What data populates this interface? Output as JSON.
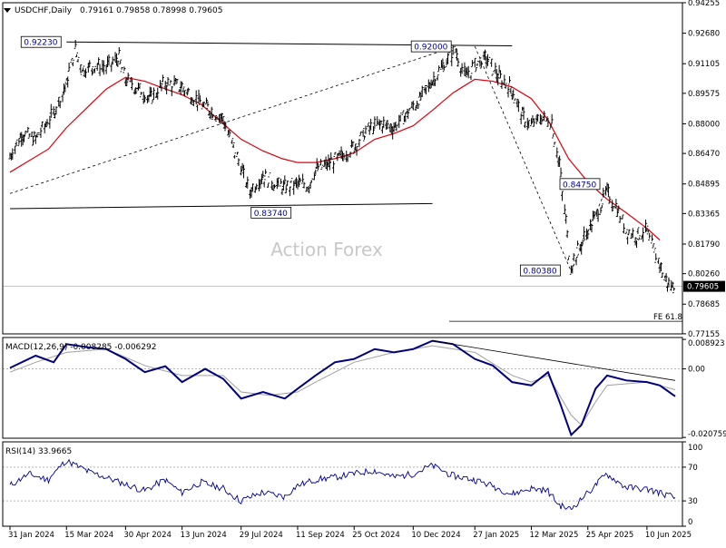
{
  "header": {
    "symbol_label": "USDCHF,Daily",
    "ohlc_label": "0.79161 0.79858 0.78998 0.79605"
  },
  "watermark": "Action Forex",
  "colors": {
    "background": "#ffffff",
    "candles": "#000000",
    "ma": "#e0000a",
    "macd_main": "#00007f",
    "macd_signal": "#a0a0a0",
    "rsi": "#00008b",
    "price_marker_bg": "#000000"
  },
  "chart_data": [
    {
      "type": "ohlc",
      "title": "USDCHF,Daily",
      "ylim": [
        0.7715,
        0.94255
      ],
      "y_ticks": [
        "0.94255",
        "0.92680",
        "0.91105",
        "0.89575",
        "0.88000",
        "0.86470",
        "0.84895",
        "0.83365",
        "0.81790",
        "0.80260",
        "0.78685",
        "0.77155"
      ],
      "current_price": "0.79605",
      "grid": false,
      "series": [
        {
          "name": "MA",
          "points": [
            [
              "2024-01-31",
              0.855
            ],
            [
              "2024-02-15",
              0.861
            ],
            [
              "2024-03-01",
              0.867
            ],
            [
              "2024-03-15",
              0.878
            ],
            [
              "2024-04-01",
              0.889
            ],
            [
              "2024-04-15",
              0.898
            ],
            [
              "2024-04-30",
              0.904
            ],
            [
              "2024-05-15",
              0.902
            ],
            [
              "2024-05-31",
              0.898
            ],
            [
              "2024-06-13",
              0.895
            ],
            [
              "2024-06-28",
              0.89
            ],
            [
              "2024-07-15",
              0.88
            ],
            [
              "2024-07-29",
              0.872
            ],
            [
              "2024-08-15",
              0.866
            ],
            [
              "2024-08-30",
              0.862
            ],
            [
              "2024-09-11",
              0.86
            ],
            [
              "2024-09-25",
              0.86
            ],
            [
              "2024-10-10",
              0.862
            ],
            [
              "2024-10-25",
              0.865
            ],
            [
              "2024-11-10",
              0.872
            ],
            [
              "2024-11-25",
              0.875
            ],
            [
              "2024-12-10",
              0.879
            ],
            [
              "2024-12-25",
              0.887
            ],
            [
              "2025-01-10",
              0.896
            ],
            [
              "2025-01-27",
              0.903
            ],
            [
              "2025-02-10",
              0.902
            ],
            [
              "2025-02-25",
              0.899
            ],
            [
              "2025-03-12",
              0.893
            ],
            [
              "2025-03-25",
              0.882
            ],
            [
              "2025-04-10",
              0.862
            ],
            [
              "2025-04-25",
              0.85
            ],
            [
              "2025-05-10",
              0.841
            ],
            [
              "2025-05-25",
              0.834
            ],
            [
              "2025-06-10",
              0.826
            ],
            [
              "2025-06-20",
              0.82
            ]
          ]
        }
      ],
      "key_points": [
        [
          "2024-01-31",
          0.863
        ],
        [
          "2024-02-10",
          0.875
        ],
        [
          "2024-02-20",
          0.872
        ],
        [
          "2024-03-05",
          0.885
        ],
        [
          "2024-03-15",
          0.9
        ],
        [
          "2024-03-22",
          0.918
        ],
        [
          "2024-03-28",
          0.908
        ],
        [
          "2024-04-08",
          0.91
        ],
        [
          "2024-04-15",
          0.909
        ],
        [
          "2024-04-25",
          0.914
        ],
        [
          "2024-04-30",
          0.903
        ],
        [
          "2024-05-10",
          0.898
        ],
        [
          "2024-05-20",
          0.893
        ],
        [
          "2024-05-31",
          0.901
        ],
        [
          "2024-06-13",
          0.899
        ],
        [
          "2024-06-25",
          0.892
        ],
        [
          "2024-07-05",
          0.887
        ],
        [
          "2024-07-15",
          0.883
        ],
        [
          "2024-07-22",
          0.87
        ],
        [
          "2024-07-29",
          0.858
        ],
        [
          "2024-08-05",
          0.845
        ],
        [
          "2024-08-15",
          0.853
        ],
        [
          "2024-08-22",
          0.85
        ],
        [
          "2024-09-01",
          0.847
        ],
        [
          "2024-09-11",
          0.849
        ],
        [
          "2024-09-20",
          0.848
        ],
        [
          "2024-09-25",
          0.856
        ],
        [
          "2024-10-05",
          0.859
        ],
        [
          "2024-10-15",
          0.863
        ],
        [
          "2024-10-25",
          0.868
        ],
        [
          "2024-11-05",
          0.877
        ],
        [
          "2024-11-15",
          0.88
        ],
        [
          "2024-11-25",
          0.878
        ],
        [
          "2024-12-05",
          0.885
        ],
        [
          "2024-12-15",
          0.892
        ],
        [
          "2024-12-25",
          0.902
        ],
        [
          "2025-01-05",
          0.912
        ],
        [
          "2025-01-12",
          0.918
        ],
        [
          "2025-01-20",
          0.904
        ],
        [
          "2025-01-27",
          0.91
        ],
        [
          "2025-02-05",
          0.914
        ],
        [
          "2025-02-15",
          0.904
        ],
        [
          "2025-02-25",
          0.898
        ],
        [
          "2025-03-05",
          0.884
        ],
        [
          "2025-03-12",
          0.879
        ],
        [
          "2025-03-20",
          0.883
        ],
        [
          "2025-03-28",
          0.881
        ],
        [
          "2025-04-03",
          0.86
        ],
        [
          "2025-04-08",
          0.83
        ],
        [
          "2025-04-12",
          0.806
        ],
        [
          "2025-04-20",
          0.818
        ],
        [
          "2025-04-28",
          0.828
        ],
        [
          "2025-05-05",
          0.837
        ],
        [
          "2025-05-10",
          0.845
        ],
        [
          "2025-05-18",
          0.836
        ],
        [
          "2025-05-25",
          0.825
        ],
        [
          "2025-06-02",
          0.822
        ],
        [
          "2025-06-10",
          0.825
        ],
        [
          "2025-06-15",
          0.815
        ],
        [
          "2025-06-20",
          0.808
        ],
        [
          "2025-06-25",
          0.799
        ],
        [
          "2025-06-30",
          0.7955
        ],
        [
          "2025-07-02",
          0.7963
        ]
      ],
      "annotations": [
        "0.92230",
        "0.92000",
        "0.83740",
        "0.84750",
        "0.80380",
        "FE 61.8"
      ],
      "annotation_points": [
        [
          "0.92230",
          "2024-03-15",
          0.9223
        ],
        [
          "0.92000",
          "2025-01-10",
          0.92
        ],
        [
          "0.83740",
          "2024-08-10",
          0.8374
        ],
        [
          "0.84750",
          "2025-05-10",
          0.8475
        ],
        [
          "0.80380",
          "2025-04-12",
          0.8038
        ]
      ],
      "trendlines": [
        [
          [
            "2024-03-15",
            0.9223
          ],
          [
            "2025-02-25",
            0.9203
          ]
        ],
        [
          [
            "2024-01-31",
            0.8362
          ],
          [
            "2024-12-25",
            0.8388
          ]
        ],
        [
          [
            "2024-01-31",
            0.844
          ],
          [
            "2025-01-12",
            0.92
          ]
        ],
        [
          [
            "2025-01-27",
            0.92
          ],
          [
            "2025-04-12",
            0.8038
          ]
        ],
        [
          [
            "2025-04-12",
            0.8038
          ],
          [
            "2025-05-10",
            0.8475
          ]
        ]
      ],
      "fe_level": 0.778,
      "x_ticks": [
        "31 Jan 2024",
        "15 Mar 2024",
        "30 Apr 2024",
        "13 Jun 2024",
        "29 Jul 2024",
        "11 Sep 2024",
        "25 Oct 2024",
        "10 Dec 2024",
        "27 Jan 2025",
        "12 Mar 2025",
        "25 Apr 2025",
        "10 Jun 2025"
      ],
      "x_tick_dates": [
        "2024-01-31",
        "2024-03-15",
        "2024-04-30",
        "2024-06-13",
        "2024-07-29",
        "2024-09-11",
        "2024-10-25",
        "2024-12-10",
        "2025-01-27",
        "2025-03-12",
        "2025-04-25",
        "2025-06-10"
      ],
      "xlim": [
        "2024-01-31",
        "2025-07-02"
      ]
    },
    {
      "type": "line",
      "title": "MACD(12,26,9) -0.008285 -0.006292",
      "ylim": [
        -0.021,
        0.0095
      ],
      "y_ticks": [
        "0.008923",
        "0.00",
        "-0.020759"
      ],
      "y_tick_values": [
        0.008923,
        0,
        -0.020759
      ],
      "series": [
        {
          "name": "MACD",
          "points": [
            [
              "2024-01-31",
              0.0003
            ],
            [
              "2024-02-20",
              0.004
            ],
            [
              "2024-03-05",
              0.002
            ],
            [
              "2024-03-15",
              0.0075
            ],
            [
              "2024-04-01",
              0.0065
            ],
            [
              "2024-04-15",
              0.006
            ],
            [
              "2024-04-30",
              0.003
            ],
            [
              "2024-05-15",
              -0.001
            ],
            [
              "2024-05-31",
              0.0008
            ],
            [
              "2024-06-13",
              -0.004
            ],
            [
              "2024-07-01",
              0.0
            ],
            [
              "2024-07-15",
              -0.003
            ],
            [
              "2024-07-29",
              -0.009
            ],
            [
              "2024-08-15",
              -0.007
            ],
            [
              "2024-09-01",
              -0.009
            ],
            [
              "2024-09-11",
              -0.006
            ],
            [
              "2024-09-25",
              -0.002
            ],
            [
              "2024-10-10",
              0.002
            ],
            [
              "2024-10-25",
              0.003
            ],
            [
              "2024-11-10",
              0.006
            ],
            [
              "2024-11-25",
              0.005
            ],
            [
              "2024-12-10",
              0.006
            ],
            [
              "2024-12-25",
              0.0085
            ],
            [
              "2025-01-10",
              0.0075
            ],
            [
              "2025-01-27",
              0.003
            ],
            [
              "2025-02-10",
              0.001
            ],
            [
              "2025-02-25",
              -0.004
            ],
            [
              "2025-03-12",
              -0.005
            ],
            [
              "2025-03-25",
              -0.001
            ],
            [
              "2025-04-03",
              -0.01
            ],
            [
              "2025-04-12",
              -0.02
            ],
            [
              "2025-04-20",
              -0.017
            ],
            [
              "2025-05-01",
              -0.006
            ],
            [
              "2025-05-10",
              -0.002
            ],
            [
              "2025-05-25",
              -0.0035
            ],
            [
              "2025-06-10",
              -0.004
            ],
            [
              "2025-06-20",
              -0.005
            ],
            [
              "2025-07-02",
              -0.0083
            ]
          ]
        },
        {
          "name": "Signal",
          "points": [
            [
              "2024-01-31",
              -0.001
            ],
            [
              "2024-02-20",
              0.002
            ],
            [
              "2024-03-15",
              0.005
            ],
            [
              "2024-04-15",
              0.006
            ],
            [
              "2024-05-15",
              0.001
            ],
            [
              "2024-06-13",
              -0.002
            ],
            [
              "2024-07-15",
              -0.002
            ],
            [
              "2024-07-29",
              -0.007
            ],
            [
              "2024-08-20",
              -0.008
            ],
            [
              "2024-09-11",
              -0.007
            ],
            [
              "2024-09-25",
              -0.004
            ],
            [
              "2024-10-25",
              0.002
            ],
            [
              "2024-11-25",
              0.005
            ],
            [
              "2024-12-25",
              0.007
            ],
            [
              "2025-01-27",
              0.005
            ],
            [
              "2025-02-25",
              -0.002
            ],
            [
              "2025-03-12",
              -0.004
            ],
            [
              "2025-03-25",
              -0.002
            ],
            [
              "2025-04-12",
              -0.014
            ],
            [
              "2025-04-20",
              -0.017
            ],
            [
              "2025-05-01",
              -0.01
            ],
            [
              "2025-05-10",
              -0.005
            ],
            [
              "2025-06-10",
              -0.004
            ],
            [
              "2025-07-02",
              -0.0063
            ]
          ]
        }
      ],
      "trendline": [
        [
          "2024-12-25",
          0.0085
        ],
        [
          "2025-07-02",
          -0.0035
        ]
      ]
    },
    {
      "type": "line",
      "title": "RSI(14) 33.9665",
      "ylim": [
        0,
        100
      ],
      "y_ticks": [
        "100",
        "70",
        "30",
        "0"
      ],
      "y_tick_values": [
        100,
        70,
        30,
        0
      ],
      "levels": [
        70,
        30
      ],
      "series": [
        {
          "name": "RSI",
          "points": [
            [
              "2024-01-31",
              48
            ],
            [
              "2024-02-15",
              62
            ],
            [
              "2024-03-01",
              55
            ],
            [
              "2024-03-15",
              78
            ],
            [
              "2024-04-01",
              65
            ],
            [
              "2024-04-15",
              58
            ],
            [
              "2024-04-30",
              50
            ],
            [
              "2024-05-15",
              42
            ],
            [
              "2024-05-31",
              55
            ],
            [
              "2024-06-13",
              40
            ],
            [
              "2024-06-28",
              52
            ],
            [
              "2024-07-15",
              45
            ],
            [
              "2024-07-29",
              30
            ],
            [
              "2024-08-15",
              40
            ],
            [
              "2024-09-01",
              35
            ],
            [
              "2024-09-11",
              48
            ],
            [
              "2024-09-25",
              55
            ],
            [
              "2024-10-10",
              58
            ],
            [
              "2024-10-25",
              62
            ],
            [
              "2024-11-10",
              66
            ],
            [
              "2024-11-25",
              58
            ],
            [
              "2024-12-10",
              62
            ],
            [
              "2024-12-25",
              72
            ],
            [
              "2025-01-10",
              60
            ],
            [
              "2025-01-27",
              55
            ],
            [
              "2025-02-10",
              48
            ],
            [
              "2025-02-25",
              38
            ],
            [
              "2025-03-12",
              45
            ],
            [
              "2025-03-25",
              42
            ],
            [
              "2025-04-03",
              25
            ],
            [
              "2025-04-12",
              20
            ],
            [
              "2025-04-20",
              32
            ],
            [
              "2025-05-01",
              48
            ],
            [
              "2025-05-10",
              62
            ],
            [
              "2025-05-25",
              46
            ],
            [
              "2025-06-10",
              44
            ],
            [
              "2025-06-20",
              40
            ],
            [
              "2025-07-02",
              34
            ]
          ]
        }
      ]
    }
  ]
}
